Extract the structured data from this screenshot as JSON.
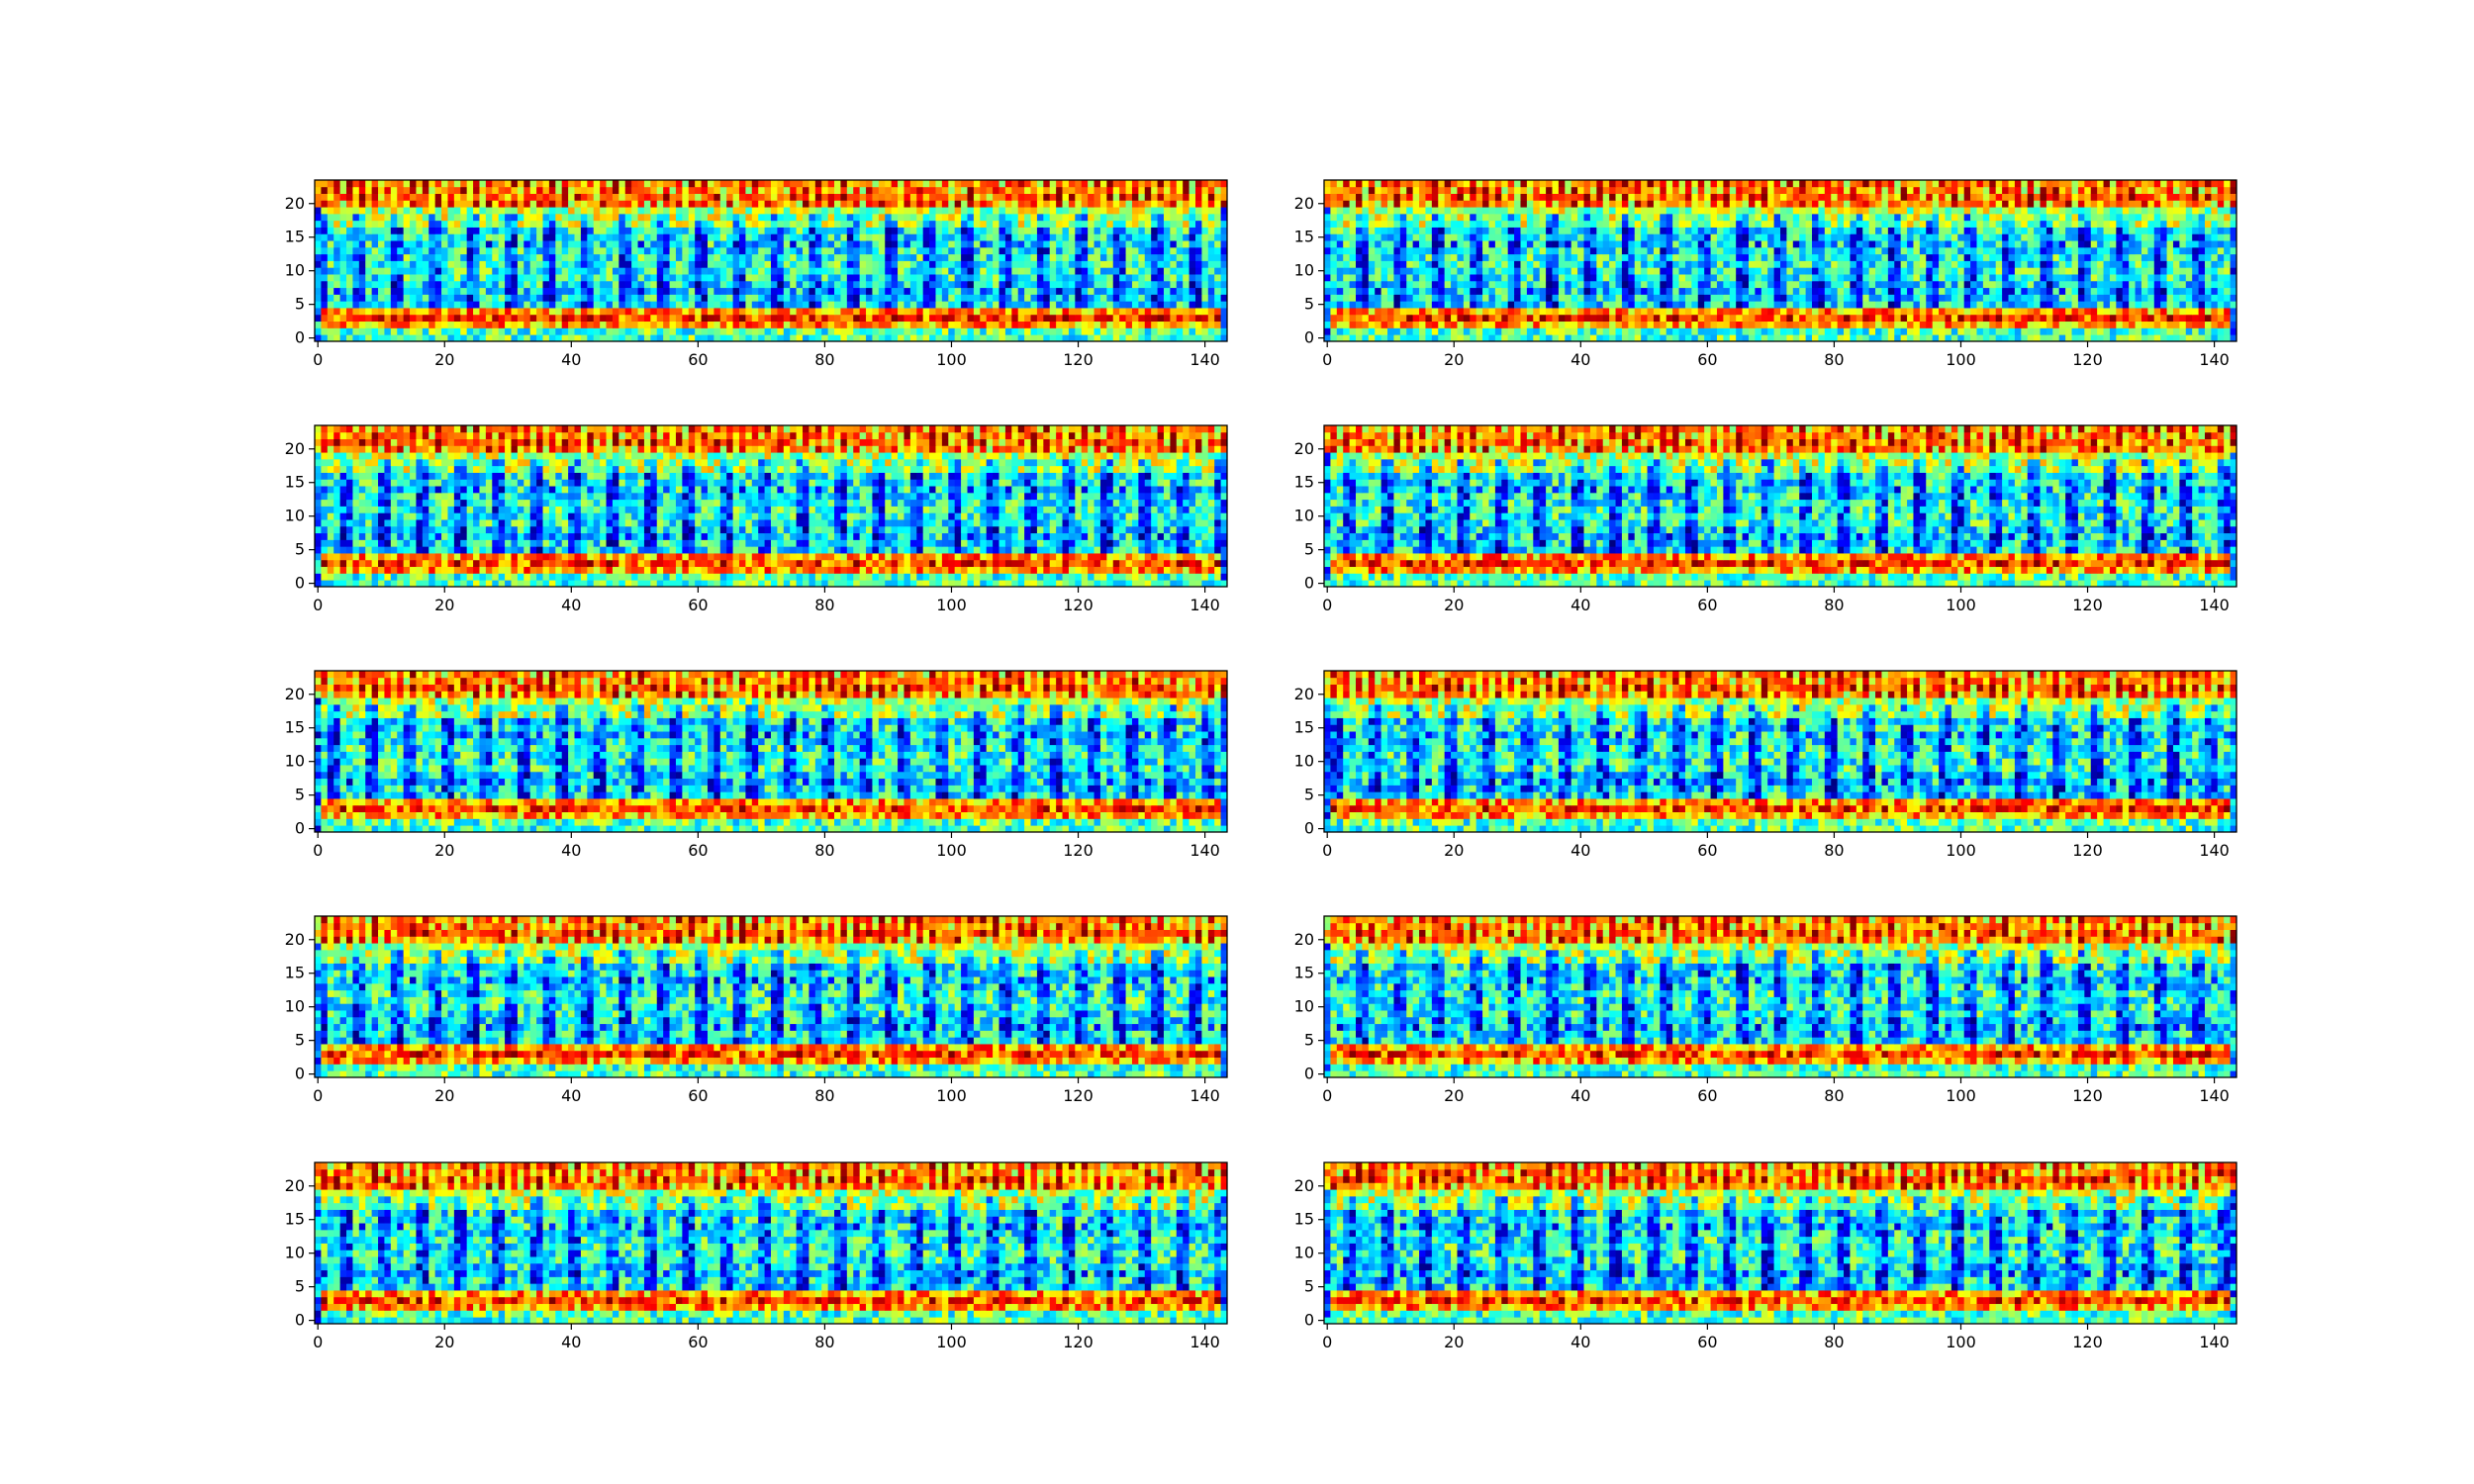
{
  "figure": {
    "title": ""
  },
  "chart_data": [
    {
      "type": "heatmap",
      "panel": "row1-left",
      "xlim": [
        0,
        143
      ],
      "ylim": [
        0,
        23
      ],
      "xticks": [
        0,
        20,
        40,
        60,
        80,
        100,
        120,
        140
      ],
      "yticks": [
        0,
        5,
        10,
        15,
        20
      ],
      "colormap": "jet",
      "seed": 11
    },
    {
      "type": "heatmap",
      "panel": "row1-right",
      "xlim": [
        0,
        143
      ],
      "ylim": [
        0,
        23
      ],
      "xticks": [
        0,
        20,
        40,
        60,
        80,
        100,
        120,
        140
      ],
      "yticks": [
        0,
        5,
        10,
        15,
        20
      ],
      "colormap": "jet",
      "seed": 23
    },
    {
      "type": "heatmap",
      "panel": "row2-left",
      "xlim": [
        0,
        143
      ],
      "ylim": [
        0,
        23
      ],
      "xticks": [
        0,
        20,
        40,
        60,
        80,
        100,
        120,
        140
      ],
      "yticks": [
        0,
        5,
        10,
        15,
        20
      ],
      "colormap": "jet",
      "seed": 37
    },
    {
      "type": "heatmap",
      "panel": "row2-right",
      "xlim": [
        0,
        143
      ],
      "ylim": [
        0,
        23
      ],
      "xticks": [
        0,
        20,
        40,
        60,
        80,
        100,
        120,
        140
      ],
      "yticks": [
        0,
        5,
        10,
        15,
        20
      ],
      "colormap": "jet",
      "seed": 41
    },
    {
      "type": "heatmap",
      "panel": "row3-left",
      "xlim": [
        0,
        143
      ],
      "ylim": [
        0,
        23
      ],
      "xticks": [
        0,
        20,
        40,
        60,
        80,
        100,
        120,
        140
      ],
      "yticks": [
        0,
        5,
        10,
        15,
        20
      ],
      "colormap": "jet",
      "seed": 53
    },
    {
      "type": "heatmap",
      "panel": "row3-right",
      "xlim": [
        0,
        143
      ],
      "ylim": [
        0,
        23
      ],
      "xticks": [
        0,
        20,
        40,
        60,
        80,
        100,
        120,
        140
      ],
      "yticks": [
        0,
        5,
        10,
        15,
        20
      ],
      "colormap": "jet",
      "seed": 67
    },
    {
      "type": "heatmap",
      "panel": "row4-left",
      "xlim": [
        0,
        143
      ],
      "ylim": [
        0,
        23
      ],
      "xticks": [
        0,
        20,
        40,
        60,
        80,
        100,
        120,
        140
      ],
      "yticks": [
        0,
        5,
        10,
        15,
        20
      ],
      "colormap": "jet",
      "seed": 71
    },
    {
      "type": "heatmap",
      "panel": "row4-right",
      "xlim": [
        0,
        143
      ],
      "ylim": [
        0,
        23
      ],
      "xticks": [
        0,
        20,
        40,
        60,
        80,
        100,
        120,
        140
      ],
      "yticks": [
        0,
        5,
        10,
        15,
        20
      ],
      "colormap": "jet",
      "seed": 83
    },
    {
      "type": "heatmap",
      "panel": "row5-left",
      "xlim": [
        0,
        143
      ],
      "ylim": [
        0,
        23
      ],
      "xticks": [
        0,
        20,
        40,
        60,
        80,
        100,
        120,
        140
      ],
      "yticks": [
        0,
        5,
        10,
        15,
        20
      ],
      "colormap": "jet",
      "seed": 97
    },
    {
      "type": "heatmap",
      "panel": "row5-right",
      "xlim": [
        0,
        143
      ],
      "ylim": [
        0,
        23
      ],
      "xticks": [
        0,
        20,
        40,
        60,
        80,
        100,
        120,
        140
      ],
      "yticks": [
        0,
        5,
        10,
        15,
        20
      ],
      "colormap": "jet",
      "seed": 101
    }
  ]
}
